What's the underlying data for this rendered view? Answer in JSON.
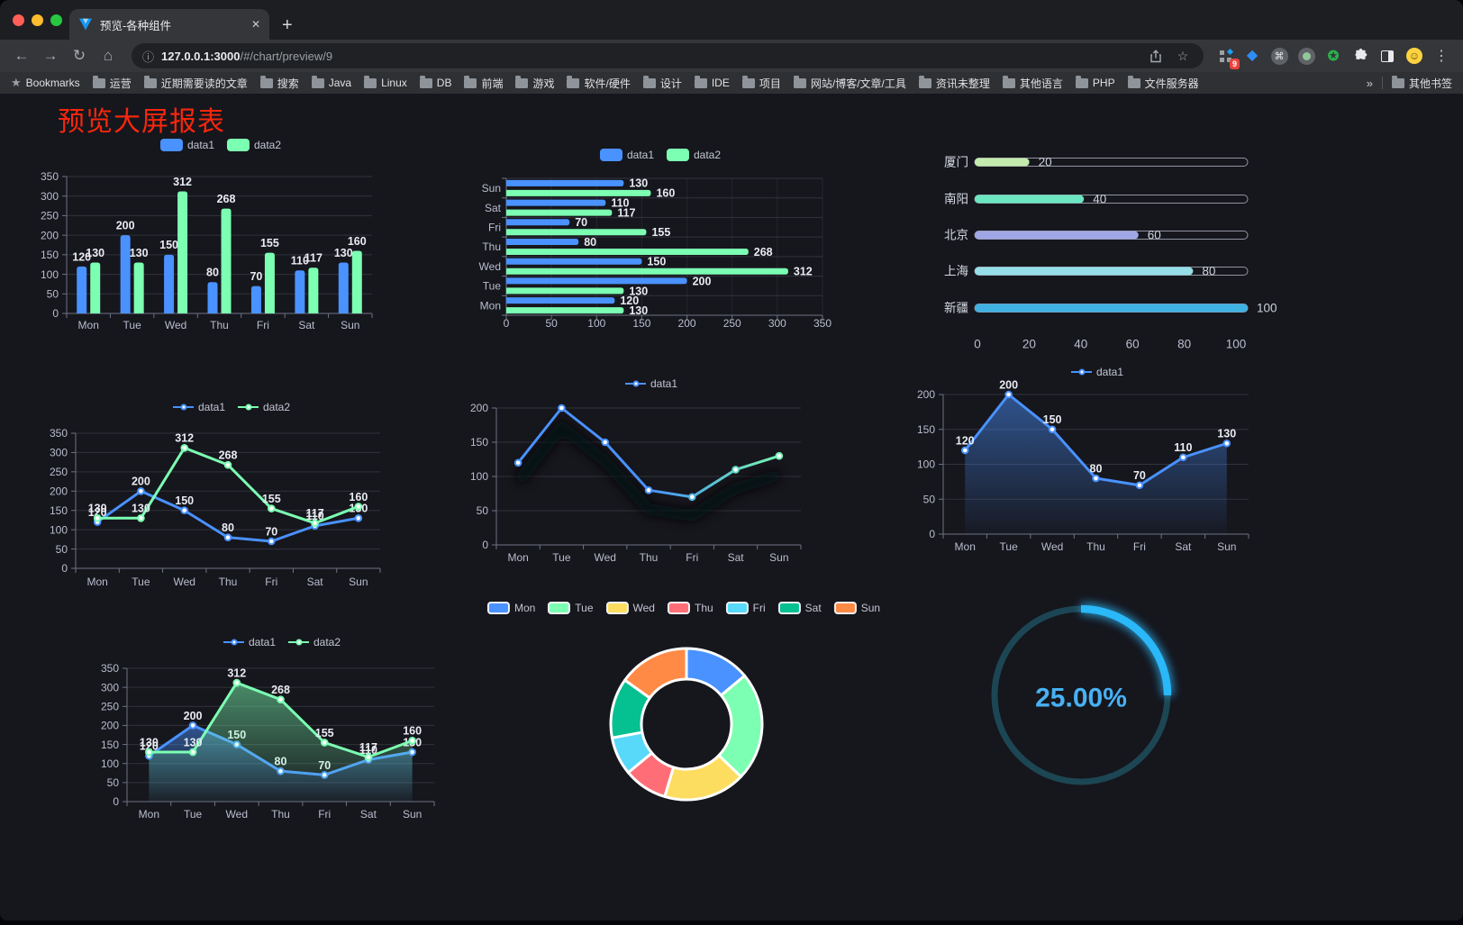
{
  "browser": {
    "tab": {
      "title": "预览-各种组件"
    },
    "icons": {
      "back": "←",
      "forward": "→",
      "reload": "↻",
      "home": "⌂",
      "info": "ⓘ",
      "star": "☆",
      "menu": "⋮",
      "close_tab": "✕",
      "new_tab": "+",
      "command": "⌘",
      "gem": "◆",
      "vue_star": "✪",
      "bookmarks_star": "★",
      "overflow": "»"
    },
    "url": {
      "host": "127.0.0.1:3000",
      "path": "/#/chart/preview/9"
    },
    "bookmarks_label": "Bookmarks",
    "bookmarks": [
      "运营",
      "近期需要读的文章",
      "搜索",
      "Java",
      "Linux",
      "DB",
      "前端",
      "游戏",
      "软件/硬件",
      "设计",
      "IDE",
      "项目",
      "网站/博客/文章/工具",
      "资讯未整理",
      "其他语言",
      "PHP",
      "文件服务器"
    ],
    "other_bookmarks": "其他书签",
    "extension_badge": "9"
  },
  "page": {
    "title": "预览大屏报表",
    "title_color": "#f5270c",
    "background": "#16161d"
  },
  "chart_data": [
    {
      "id": "grouped-bar",
      "type": "bar",
      "categories": [
        "Mon",
        "Tue",
        "Wed",
        "Thu",
        "Fri",
        "Sat",
        "Sun"
      ],
      "series": [
        {
          "name": "data1",
          "color": "#4992ff",
          "values": [
            120,
            200,
            150,
            80,
            70,
            110,
            130
          ]
        },
        {
          "name": "data2",
          "color": "#7cffb2",
          "values": [
            130,
            130,
            312,
            268,
            155,
            117,
            160
          ]
        }
      ],
      "ylim": [
        0,
        350
      ],
      "ytick_step": 50,
      "grid": true,
      "value_labels": true,
      "legend_position": "top"
    },
    {
      "id": "horizontal-bar",
      "type": "bar-horizontal",
      "categories": [
        "Mon",
        "Tue",
        "Wed",
        "Thu",
        "Fri",
        "Sat",
        "Sun"
      ],
      "series": [
        {
          "name": "data1",
          "color": "#4992ff",
          "values": [
            120,
            200,
            150,
            80,
            70,
            110,
            130
          ]
        },
        {
          "name": "data2",
          "color": "#7cffb2",
          "values": [
            130,
            130,
            312,
            268,
            155,
            117,
            160
          ]
        }
      ],
      "xlim": [
        0,
        350
      ],
      "xtick_step": 50,
      "value_labels": true,
      "legend_position": "top"
    },
    {
      "id": "progress-bars",
      "type": "progress",
      "categories": [
        "厦门",
        "南阳",
        "北京",
        "上海",
        "新疆"
      ],
      "values": [
        20,
        40,
        60,
        80,
        100
      ],
      "colors": [
        "#c4ebad",
        "#6be6c1",
        "#a0a7e6",
        "#96dee8",
        "#3fb1e3"
      ],
      "xticks": [
        0,
        20,
        40,
        60,
        80,
        100
      ],
      "xlim": [
        0,
        100
      ]
    },
    {
      "id": "multi-line",
      "type": "line",
      "categories": [
        "Mon",
        "Tue",
        "Wed",
        "Thu",
        "Fri",
        "Sat",
        "Sun"
      ],
      "series": [
        {
          "name": "data1",
          "color": "#4992ff",
          "values": [
            120,
            200,
            150,
            80,
            70,
            110,
            130
          ]
        },
        {
          "name": "data2",
          "color": "#7cffb2",
          "values": [
            130,
            130,
            312,
            268,
            155,
            117,
            160
          ]
        }
      ],
      "ylim": [
        0,
        350
      ],
      "ytick_step": 50,
      "value_labels": true,
      "legend_position": "top"
    },
    {
      "id": "gradient-line",
      "type": "line",
      "categories": [
        "Mon",
        "Tue",
        "Wed",
        "Thu",
        "Fri",
        "Sat",
        "Sun"
      ],
      "series": [
        {
          "name": "data1",
          "color": "#4992ff",
          "color_end": "#7cffb2",
          "gradient": [
            "#4992ff",
            "#4992ff",
            "#54b9d9",
            "#6ee6b9",
            "#7cffb2"
          ],
          "values": [
            120,
            200,
            150,
            80,
            70,
            110,
            130
          ]
        }
      ],
      "ylim": [
        0,
        200
      ],
      "ytick_step": 50,
      "value_labels": false,
      "line_shadow": true,
      "legend_position": "top"
    },
    {
      "id": "area-single",
      "type": "area",
      "categories": [
        "Mon",
        "Tue",
        "Wed",
        "Thu",
        "Fri",
        "Sat",
        "Sun"
      ],
      "series": [
        {
          "name": "data1",
          "color": "#4992ff",
          "values": [
            120,
            200,
            150,
            80,
            70,
            110,
            130
          ]
        }
      ],
      "ylim": [
        0,
        200
      ],
      "ytick_step": 50,
      "value_labels": true,
      "legend_position": "top"
    },
    {
      "id": "area-dual",
      "type": "area",
      "categories": [
        "Mon",
        "Tue",
        "Wed",
        "Thu",
        "Fri",
        "Sat",
        "Sun"
      ],
      "series": [
        {
          "name": "data1",
          "color": "#4992ff",
          "values": [
            120,
            200,
            150,
            80,
            70,
            110,
            130
          ]
        },
        {
          "name": "data2",
          "color": "#7cffb2",
          "values": [
            130,
            130,
            312,
            268,
            155,
            117,
            160
          ]
        }
      ],
      "ylim": [
        0,
        350
      ],
      "ytick_step": 50,
      "value_labels": true,
      "legend_position": "top"
    },
    {
      "id": "donut",
      "type": "donut",
      "categories": [
        "Mon",
        "Tue",
        "Wed",
        "Thu",
        "Fri",
        "Sat",
        "Sun"
      ],
      "values": [
        120,
        200,
        150,
        80,
        70,
        110,
        130
      ],
      "colors": [
        "#4992ff",
        "#7cffb2",
        "#fddd60",
        "#ff6e76",
        "#58d9f9",
        "#05c091",
        "#ff8a45"
      ],
      "border_color": "#ffffff",
      "legend_position": "top"
    },
    {
      "id": "gauge",
      "type": "gauge",
      "value": 25,
      "display": "25.00%",
      "color": "#2ab8f8",
      "track_color": "#1c4653",
      "text_color": "#47b1f3"
    }
  ]
}
